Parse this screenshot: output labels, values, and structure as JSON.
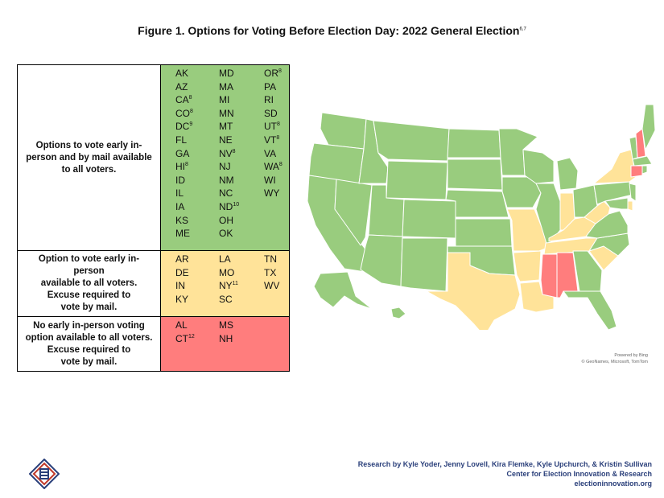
{
  "title": {
    "text": "Figure 1. Options for Voting Before Election Day: 2022 General Election",
    "sup": "6,7"
  },
  "colors": {
    "green": "#99cc7e",
    "yellow": "#ffe399",
    "red": "#ff7d7d",
    "water": "#ffffff",
    "credits": "#2a3f7a"
  },
  "legend": {
    "rows": [
      {
        "label_lines": [
          "Options to vote early in-",
          "person and by mail available",
          "to all voters."
        ],
        "color": "green",
        "columns": [
          [
            [
              "AK",
              ""
            ],
            [
              "AZ",
              ""
            ],
            [
              "CA",
              "8"
            ],
            [
              "CO",
              "8"
            ],
            [
              "DC",
              "9"
            ],
            [
              "FL",
              ""
            ],
            [
              "GA",
              ""
            ],
            [
              "HI",
              "8"
            ],
            [
              "ID",
              ""
            ],
            [
              "IL",
              ""
            ],
            [
              "IA",
              ""
            ],
            [
              "KS",
              ""
            ],
            [
              "ME",
              ""
            ]
          ],
          [
            [
              "MD",
              ""
            ],
            [
              "MA",
              ""
            ],
            [
              "MI",
              ""
            ],
            [
              "MN",
              ""
            ],
            [
              "MT",
              ""
            ],
            [
              "NE",
              ""
            ],
            [
              "NV",
              "8"
            ],
            [
              "NJ",
              ""
            ],
            [
              "NM",
              ""
            ],
            [
              "NC",
              ""
            ],
            [
              "ND",
              "10"
            ],
            [
              "OH",
              ""
            ],
            [
              "OK",
              ""
            ]
          ],
          [
            [
              "OR",
              "8"
            ],
            [
              "PA",
              ""
            ],
            [
              "RI",
              ""
            ],
            [
              "SD",
              ""
            ],
            [
              "UT",
              "8"
            ],
            [
              "VT",
              "8"
            ],
            [
              "VA",
              ""
            ],
            [
              "WA",
              "8"
            ],
            [
              "WI",
              ""
            ],
            [
              "WY",
              ""
            ]
          ]
        ]
      },
      {
        "label_lines": [
          "Option to vote early in-person",
          "available to all voters.",
          "Excuse required to",
          "vote by mail."
        ],
        "color": "yellow",
        "columns": [
          [
            [
              "AR",
              ""
            ],
            [
              "DE",
              ""
            ],
            [
              "IN",
              ""
            ],
            [
              "KY",
              ""
            ]
          ],
          [
            [
              "LA",
              ""
            ],
            [
              "MO",
              ""
            ],
            [
              "NY",
              "11"
            ],
            [
              "SC",
              ""
            ]
          ],
          [
            [
              "TN",
              ""
            ],
            [
              "TX",
              ""
            ],
            [
              "WV",
              ""
            ]
          ]
        ]
      },
      {
        "label_lines": [
          "No early in-person voting",
          "option available to all voters.",
          "Excuse required to",
          "vote by mail."
        ],
        "color": "red",
        "columns": [
          [
            [
              "AL",
              ""
            ],
            [
              "CT",
              "12"
            ]
          ],
          [
            [
              "MS",
              ""
            ],
            [
              "NH",
              ""
            ]
          ],
          []
        ]
      }
    ]
  },
  "map": {
    "attribution_lines": [
      "Powered by Bing",
      "© GeoNames, Microsoft, TomTom"
    ],
    "state_status": {
      "WA": "green",
      "OR": "green",
      "CA": "green",
      "NV": "green",
      "ID": "green",
      "MT": "green",
      "WY": "green",
      "UT": "green",
      "AZ": "green",
      "CO": "green",
      "NM": "green",
      "ND": "green",
      "SD": "green",
      "NE": "green",
      "KS": "green",
      "OK": "green",
      "TX": "yellow",
      "MN": "green",
      "IA": "green",
      "MO": "yellow",
      "AR": "yellow",
      "LA": "yellow",
      "WI": "green",
      "IL": "green",
      "MI": "green",
      "IN": "yellow",
      "OH": "green",
      "KY": "yellow",
      "TN": "yellow",
      "MS": "red",
      "AL": "red",
      "GA": "green",
      "FL": "green",
      "SC": "yellow",
      "NC": "green",
      "VA": "green",
      "WV": "yellow",
      "PA": "green",
      "NY": "yellow",
      "VT": "green",
      "NH": "red",
      "ME": "green",
      "MA": "green",
      "RI": "green",
      "CT": "red",
      "NJ": "green",
      "DE": "yellow",
      "MD": "green",
      "AK": "green",
      "HI": "green"
    }
  },
  "credits": {
    "lines": [
      "Research by Kyle Yoder, Jenny Lovell, Kira Flemke, Kyle Upchurch, & Kristin Sullivan",
      "Center for Election Innovation & Research",
      "electioninnovation.org"
    ]
  },
  "logo": {
    "icon": "ceir-diamond-logo-icon"
  }
}
